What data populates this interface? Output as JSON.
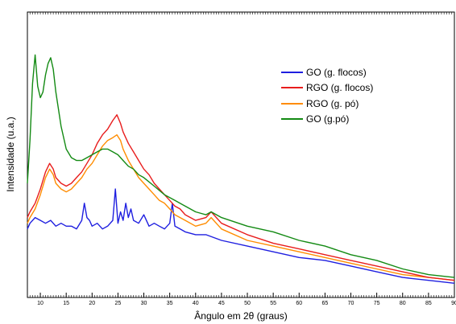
{
  "chart_data": {
    "type": "line",
    "xlabel": "Ângulo em 2θ (graus)",
    "ylabel": "Intensidade (u.a.)",
    "xlim": [
      7.5,
      90
    ],
    "ylim": [
      0,
      100
    ],
    "y_tick_labels_shown": false,
    "legend_position": "top-right",
    "x_ticks": [
      10,
      15,
      20,
      25,
      30,
      35,
      40,
      45,
      50,
      55,
      60,
      65,
      70,
      75,
      80,
      85,
      90
    ],
    "series": [
      {
        "name": "GO (g. flocos)",
        "color": "#1f1fe0",
        "x": [
          7.5,
          8,
          9,
          10,
          11,
          12,
          13,
          14,
          15,
          16,
          17,
          18,
          18.5,
          19,
          19.5,
          20,
          21,
          22,
          23,
          24,
          24.5,
          25,
          25.5,
          26,
          26.5,
          27,
          27.5,
          28,
          29,
          30,
          31,
          32,
          33,
          34,
          35,
          35.5,
          36,
          37,
          38,
          40,
          42,
          45,
          50,
          55,
          60,
          65,
          70,
          75,
          80,
          85,
          90
        ],
        "y": [
          24,
          26,
          28,
          27,
          26,
          27,
          25,
          26,
          25,
          25,
          24,
          27,
          33,
          28,
          27,
          25,
          26,
          24,
          25,
          27,
          38,
          26,
          30,
          27,
          33,
          28,
          31,
          27,
          26,
          29,
          25,
          26,
          25,
          24,
          26,
          33,
          25,
          24,
          23,
          22,
          22,
          20,
          18,
          16,
          14,
          13,
          11,
          9,
          7,
          6,
          5
        ]
      },
      {
        "name": "RGO (g. flocos)",
        "color": "#e81d1d",
        "x": [
          7.5,
          8,
          9,
          10,
          11,
          11.8,
          12.5,
          13,
          14,
          15,
          16,
          17,
          18,
          19,
          20,
          21,
          22,
          23,
          24,
          24.8,
          25.5,
          26,
          27,
          28,
          29,
          30,
          31,
          32,
          33,
          34,
          35,
          36,
          37,
          38,
          40,
          42,
          43,
          45,
          50,
          55,
          60,
          65,
          70,
          75,
          80,
          85,
          90
        ],
        "y": [
          28,
          30,
          33,
          38,
          44,
          47,
          45,
          42,
          40,
          39,
          40,
          42,
          44,
          47,
          50,
          54,
          57,
          59,
          62,
          64,
          61,
          58,
          54,
          51,
          48,
          45,
          43,
          40,
          38,
          36,
          34,
          32,
          31,
          29,
          27,
          28,
          30,
          26,
          22,
          19,
          17,
          15,
          13,
          11,
          9,
          7,
          6
        ]
      },
      {
        "name": "RGO (g. pó)",
        "color": "#ff8c00",
        "x": [
          7.5,
          8,
          9,
          10,
          11,
          11.8,
          12.5,
          13,
          14,
          15,
          16,
          17,
          18,
          19,
          20,
          21,
          22,
          23,
          24,
          24.8,
          25.5,
          26,
          27,
          28,
          29,
          30,
          31,
          32,
          33,
          34,
          35,
          36,
          37,
          38,
          40,
          42,
          43,
          45,
          50,
          55,
          60,
          65,
          70,
          75,
          80,
          85,
          90
        ],
        "y": [
          26,
          28,
          31,
          36,
          42,
          45,
          43,
          40,
          38,
          37,
          38,
          40,
          42,
          45,
          47,
          50,
          53,
          55,
          56,
          57,
          55,
          52,
          48,
          45,
          42,
          40,
          38,
          36,
          34,
          33,
          31,
          29,
          28,
          27,
          25,
          26,
          28,
          24,
          20,
          18,
          16,
          14,
          12,
          10,
          8,
          7,
          6
        ]
      },
      {
        "name": "GO (g.pó)",
        "color": "#138a13",
        "x": [
          7.5,
          8,
          8.5,
          9,
          9.5,
          10,
          10.5,
          11,
          11.5,
          12,
          12.5,
          13,
          14,
          15,
          16,
          17,
          18,
          19,
          20,
          21,
          22,
          23,
          24,
          25,
          26,
          27,
          28,
          29,
          30,
          32,
          34,
          36,
          38,
          40,
          42,
          43,
          45,
          50,
          55,
          60,
          65,
          70,
          75,
          80,
          85,
          90
        ],
        "y": [
          40,
          55,
          75,
          85,
          74,
          70,
          72,
          78,
          82,
          84,
          80,
          72,
          60,
          52,
          49,
          48,
          48,
          49,
          50,
          51,
          52,
          52,
          51,
          50,
          48,
          46,
          45,
          43,
          42,
          39,
          36,
          34,
          32,
          30,
          29,
          30,
          28,
          25,
          23,
          20,
          18,
          15,
          13,
          10,
          8,
          7
        ]
      }
    ]
  }
}
